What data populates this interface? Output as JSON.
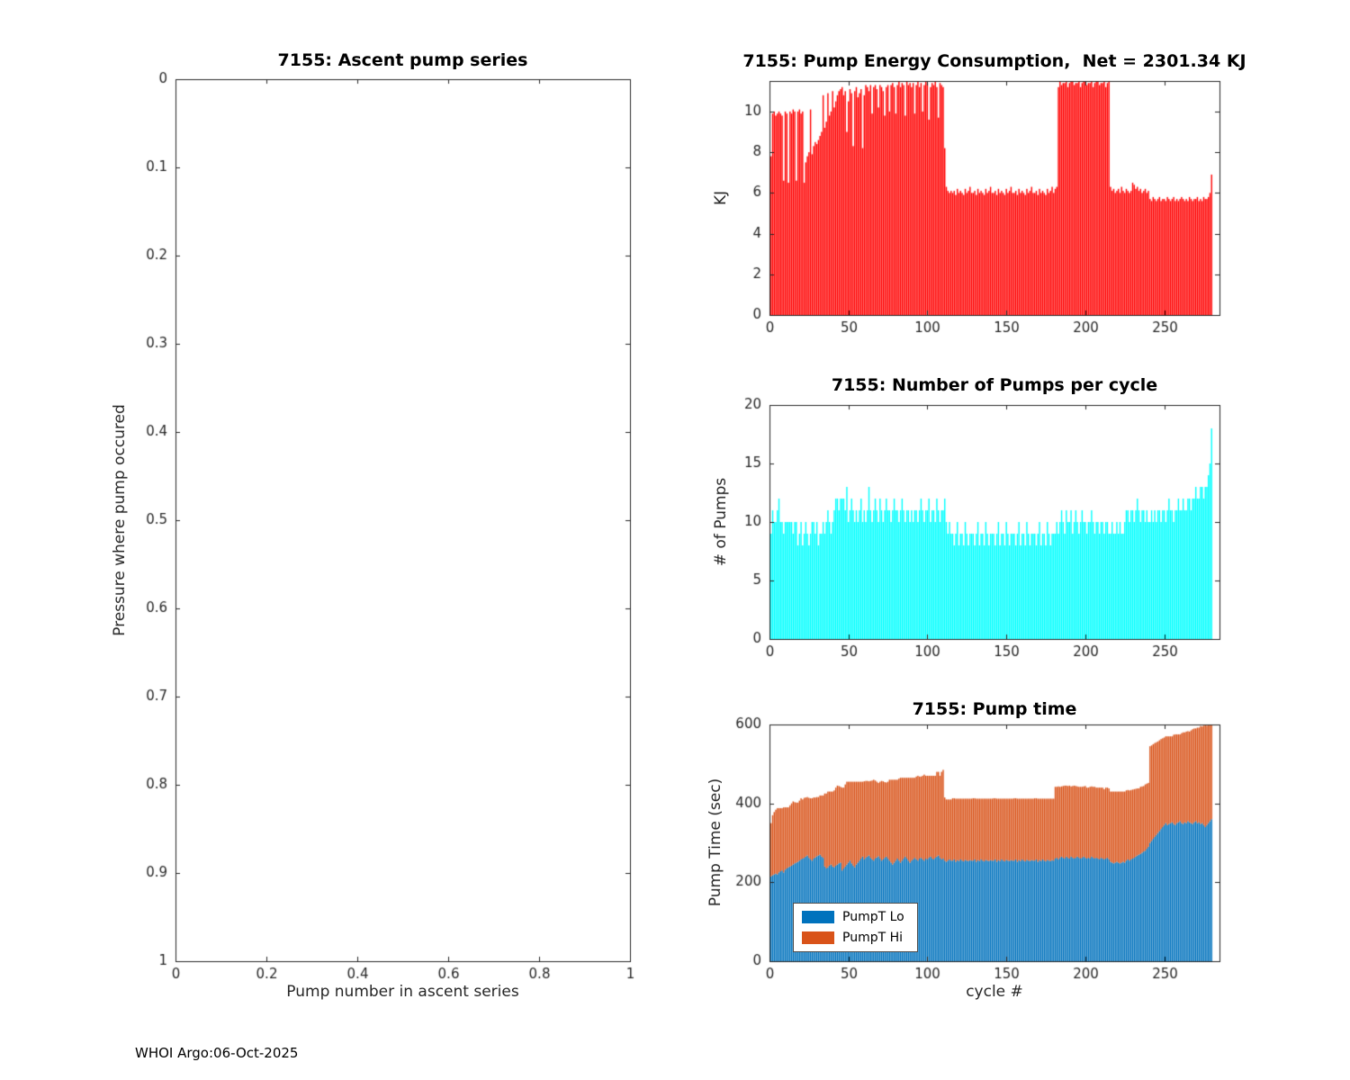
{
  "footer": {
    "text": "WHOI Argo:06-Oct-2025"
  },
  "colors": {
    "energy_bar": "#ff0000",
    "pumps_bar": "#00ffff",
    "pump_lo": "#0072bd",
    "pump_hi": "#d95319",
    "axis": "#262626",
    "title": "#000000"
  },
  "chart_data": [
    {
      "id": "ascent",
      "type": "bar",
      "title": "7155: Ascent pump series",
      "xlabel": "Pump number in ascent series",
      "ylabel": "Pressure where pump occured",
      "xlim": [
        0,
        1
      ],
      "ylim": [
        0,
        1
      ],
      "y_inverted": true,
      "grid": false,
      "xticks": [
        0,
        0.2,
        0.4,
        0.6,
        0.8,
        1
      ],
      "yticks": [
        0,
        0.1,
        0.2,
        0.3,
        0.4,
        0.5,
        0.6,
        0.7,
        0.8,
        0.9,
        1
      ],
      "color": "#0072bd",
      "values": []
    },
    {
      "id": "energy",
      "type": "bar",
      "title": "7155: Pump Energy Consumption,  Net = 2301.34 KJ",
      "net_kj": 2301.34,
      "xlabel": "",
      "ylabel": "KJ",
      "xlim": [
        0,
        285
      ],
      "ylim": [
        0,
        11.5
      ],
      "grid": false,
      "xticks": [
        0,
        50,
        100,
        150,
        200,
        250
      ],
      "yticks": [
        0,
        2,
        4,
        6,
        8,
        10
      ],
      "color": "#ff0000",
      "values": [
        7.8,
        9.9,
        10.0,
        9.8,
        9.9,
        10.0,
        9.9,
        9.8,
        6.6,
        10.0,
        9.9,
        6.5,
        10.0,
        9.9,
        10.1,
        10.0,
        6.6,
        10.0,
        10.1,
        9.9,
        10.0,
        6.5,
        7.5,
        7.8,
        8.0,
        10.1,
        7.9,
        8.3,
        8.5,
        8.4,
        8.6,
        8.8,
        9.0,
        10.8,
        9.2,
        9.5,
        10.9,
        9.8,
        10.0,
        11.0,
        10.2,
        10.5,
        10.8,
        11.0,
        11.1,
        11.2,
        10.8,
        11.0,
        9.0,
        10.5,
        11.1,
        10.9,
        8.3,
        11.0,
        11.2,
        10.7,
        10.9,
        11.1,
        8.2,
        10.8,
        11.3,
        11.2,
        11.0,
        11.3,
        9.9,
        11.2,
        11.3,
        11.1,
        10.2,
        11.3,
        11.2,
        11.0,
        9.8,
        11.2,
        11.3,
        10.0,
        11.3,
        11.4,
        11.2,
        9.9,
        11.3,
        11.5,
        11.2,
        11.4,
        11.3,
        9.8,
        11.5,
        11.3,
        11.4,
        11.2,
        11.4,
        9.9,
        11.3,
        11.5,
        11.2,
        11.4,
        10.0,
        11.3,
        11.5,
        11.4,
        9.6,
        11.2,
        11.4,
        11.3,
        11.5,
        11.2,
        9.7,
        11.4,
        11.3,
        11.2,
        8.2,
        6.3,
        6.1,
        6.0,
        6.1,
        6.0,
        6.1,
        5.9,
        6.2,
        6.0,
        6.1,
        6.0,
        5.9,
        6.2,
        6.0,
        6.1,
        6.3,
        6.0,
        6.0,
        6.1,
        5.9,
        6.2,
        6.0,
        6.1,
        6.0,
        5.9,
        6.2,
        6.0,
        6.1,
        6.3,
        6.0,
        6.0,
        6.1,
        5.9,
        6.2,
        6.0,
        6.1,
        6.0,
        5.9,
        6.2,
        6.0,
        6.1,
        6.3,
        6.0,
        6.0,
        6.1,
        5.9,
        6.2,
        6.0,
        6.1,
        6.0,
        5.9,
        6.2,
        6.0,
        6.1,
        6.3,
        6.0,
        6.0,
        6.1,
        5.9,
        6.2,
        6.0,
        6.1,
        6.0,
        5.9,
        6.2,
        6.0,
        6.1,
        6.3,
        6.0,
        6.2,
        6.3,
        11.2,
        11.5,
        11.3,
        11.4,
        11.4,
        11.5,
        11.2,
        11.4,
        11.5,
        11.5,
        11.3,
        11.4,
        11.4,
        11.5,
        11.2,
        11.4,
        11.5,
        11.5,
        11.3,
        11.4,
        11.4,
        11.5,
        11.2,
        11.4,
        11.5,
        11.5,
        11.3,
        11.4,
        11.4,
        11.5,
        11.2,
        11.4,
        11.5,
        6.3,
        6.1,
        6.2,
        6.0,
        6.1,
        6.2,
        6.0,
        6.3,
        6.1,
        6.0,
        6.2,
        6.1,
        6.0,
        6.1,
        6.5,
        6.4,
        6.2,
        6.3,
        6.1,
        6.2,
        6.0,
        6.1,
        6.2,
        6.0,
        6.1,
        5.7,
        5.6,
        5.8,
        5.7,
        5.6,
        5.7,
        5.8,
        5.6,
        5.7,
        5.7,
        5.6,
        5.8,
        5.7,
        5.6,
        5.7,
        5.8,
        5.6,
        5.7,
        5.6,
        5.7,
        5.8,
        5.7,
        5.6,
        5.7,
        5.6,
        5.8,
        5.7,
        5.6,
        5.7,
        5.7,
        5.8,
        5.6,
        5.7,
        5.6,
        5.8,
        5.7,
        5.7,
        5.8,
        6.0,
        6.9
      ]
    },
    {
      "id": "pumps",
      "type": "bar",
      "title": "7155: Number of Pumps per cycle",
      "xlabel": "",
      "ylabel": "# of Pumps",
      "xlim": [
        0,
        285
      ],
      "ylim": [
        0,
        20
      ],
      "grid": false,
      "xticks": [
        0,
        50,
        100,
        150,
        200,
        250
      ],
      "yticks": [
        0,
        5,
        10,
        15,
        20
      ],
      "color": "#00ffff",
      "values": [
        9,
        11,
        10,
        10,
        11,
        12,
        10,
        10,
        9,
        10,
        10,
        10,
        10,
        10,
        9,
        10,
        10,
        8,
        9,
        10,
        8,
        9,
        10,
        9,
        8,
        9,
        10,
        10,
        9,
        10,
        8,
        9,
        9,
        10,
        9,
        10,
        11,
        10,
        9,
        10,
        11,
        12,
        12,
        11,
        12,
        12,
        12,
        11,
        13,
        10,
        11,
        12,
        11,
        10,
        11,
        10,
        11,
        12,
        10,
        11,
        10,
        11,
        13,
        11,
        10,
        11,
        12,
        11,
        10,
        12,
        11,
        10,
        11,
        12,
        11,
        11,
        10,
        11,
        12,
        11,
        11,
        10,
        11,
        12,
        11,
        10,
        11,
        11,
        10,
        11,
        10,
        11,
        11,
        10,
        11,
        12,
        11,
        10,
        11,
        11,
        12,
        10,
        11,
        11,
        10,
        12,
        11,
        10,
        11,
        11,
        12,
        10,
        9,
        10,
        9,
        9,
        8,
        9,
        10,
        8,
        9,
        9,
        8,
        10,
        9,
        8,
        9,
        9,
        9,
        8,
        9,
        10,
        8,
        9,
        9,
        8,
        10,
        9,
        8,
        9,
        9,
        9,
        8,
        9,
        10,
        8,
        9,
        9,
        8,
        10,
        9,
        8,
        9,
        9,
        9,
        8,
        9,
        10,
        8,
        9,
        9,
        8,
        10,
        9,
        8,
        9,
        9,
        9,
        8,
        9,
        10,
        8,
        9,
        9,
        8,
        10,
        9,
        8,
        9,
        9,
        9,
        10,
        9,
        10,
        11,
        10,
        9,
        11,
        10,
        10,
        11,
        9,
        10,
        11,
        10,
        9,
        10,
        11,
        10,
        10,
        9,
        10,
        10,
        11,
        10,
        9,
        10,
        10,
        9,
        10,
        10,
        9,
        10,
        10,
        9,
        9,
        10,
        9,
        9,
        10,
        9,
        10,
        9,
        9,
        10,
        11,
        11,
        10,
        11,
        11,
        10,
        11,
        12,
        11,
        10,
        11,
        11,
        10,
        11,
        10,
        10,
        11,
        10,
        11,
        10,
        11,
        11,
        10,
        11,
        11,
        10,
        11,
        12,
        11,
        11,
        10,
        11,
        11,
        12,
        11,
        11,
        12,
        11,
        11,
        12,
        12,
        11,
        12,
        12,
        13,
        12,
        12,
        13,
        13,
        12,
        13,
        13,
        14,
        15,
        18
      ]
    },
    {
      "id": "pumptime",
      "type": "stacked-bar",
      "title": "7155: Pump time",
      "xlabel": "cycle #",
      "ylabel": "Pump Time (sec)",
      "xlim": [
        0,
        285
      ],
      "ylim": [
        0,
        600
      ],
      "grid": false,
      "xticks": [
        0,
        50,
        100,
        150,
        200,
        250
      ],
      "yticks": [
        0,
        200,
        400,
        600
      ],
      "legend": [
        {
          "label": "PumpT Lo",
          "color": "#0072bd"
        },
        {
          "label": "PumpT Hi",
          "color": "#d95319"
        }
      ],
      "series": [
        {
          "name": "PumpT Lo",
          "color": "#0072bd",
          "values": [
            215,
            218,
            220,
            222,
            220,
            225,
            228,
            230,
            225,
            232,
            235,
            238,
            240,
            242,
            245,
            248,
            250,
            252,
            255,
            258,
            260,
            262,
            265,
            268,
            262,
            258,
            255,
            260,
            263,
            266,
            268,
            270,
            265,
            262,
            240,
            235,
            238,
            242,
            245,
            240,
            238,
            242,
            245,
            248,
            250,
            230,
            235,
            240,
            245,
            250,
            255,
            248,
            242,
            238,
            245,
            250,
            255,
            260,
            265,
            258,
            262,
            265,
            268,
            262,
            258,
            255,
            260,
            263,
            266,
            260,
            255,
            258,
            262,
            265,
            260,
            255,
            250,
            245,
            250,
            255,
            260,
            255,
            250,
            255,
            260,
            265,
            260,
            255,
            250,
            255,
            258,
            262,
            258,
            255,
            260,
            262,
            258,
            255,
            260,
            258,
            262,
            265,
            260,
            258,
            262,
            265,
            268,
            262,
            258,
            260,
            255,
            252,
            255,
            258,
            255,
            255,
            258,
            252,
            256,
            254,
            258,
            255,
            253,
            257,
            255,
            254,
            256,
            255,
            255,
            258,
            252,
            256,
            254,
            258,
            255,
            253,
            257,
            255,
            254,
            256,
            255,
            255,
            258,
            252,
            256,
            254,
            258,
            255,
            253,
            257,
            255,
            254,
            256,
            255,
            255,
            258,
            252,
            256,
            254,
            258,
            255,
            253,
            257,
            255,
            254,
            256,
            255,
            255,
            258,
            252,
            256,
            254,
            258,
            255,
            253,
            257,
            255,
            254,
            256,
            255,
            260,
            262,
            258,
            262,
            265,
            262,
            260,
            265,
            262,
            260,
            265,
            262,
            260,
            262,
            265,
            262,
            260,
            262,
            265,
            262,
            260,
            262,
            260,
            265,
            262,
            260,
            262,
            260,
            258,
            262,
            260,
            258,
            260,
            262,
            258,
            252,
            250,
            248,
            250,
            252,
            250,
            248,
            250,
            252,
            250,
            255,
            258,
            255,
            258,
            260,
            262,
            265,
            268,
            270,
            272,
            275,
            278,
            280,
            285,
            290,
            300,
            305,
            310,
            315,
            320,
            325,
            330,
            335,
            340,
            345,
            350,
            345,
            348,
            350,
            352,
            348,
            345,
            350,
            352,
            355,
            350,
            348,
            352,
            350,
            355,
            352,
            350,
            348,
            352,
            355,
            350,
            352,
            348,
            350,
            345,
            340,
            345,
            350,
            355,
            360
          ]
        },
        {
          "name": "PumpT Hi",
          "color": "#d95319",
          "values": [
            135,
            152,
            158,
            162,
            168,
            163,
            160,
            158,
            165,
            158,
            155,
            152,
            155,
            158,
            160,
            155,
            152,
            150,
            152,
            155,
            150,
            152,
            150,
            148,
            152,
            155,
            158,
            155,
            152,
            150,
            148,
            150,
            155,
            158,
            185,
            190,
            192,
            188,
            185,
            190,
            195,
            198,
            200,
            196,
            192,
            210,
            205,
            208,
            210,
            205,
            200,
            207,
            213,
            217,
            210,
            205,
            200,
            195,
            190,
            198,
            195,
            192,
            188,
            195,
            200,
            205,
            198,
            192,
            186,
            195,
            202,
            198,
            192,
            188,
            195,
            205,
            210,
            215,
            210,
            205,
            200,
            208,
            215,
            210,
            205,
            200,
            205,
            210,
            215,
            210,
            207,
            203,
            210,
            215,
            208,
            206,
            212,
            218,
            210,
            212,
            208,
            205,
            210,
            212,
            208,
            215,
            212,
            208,
            222,
            225,
            160,
            158,
            155,
            152,
            155,
            158,
            155,
            160,
            156,
            158,
            154,
            157,
            159,
            155,
            157,
            158,
            156,
            157,
            158,
            155,
            160,
            156,
            158,
            154,
            157,
            159,
            155,
            157,
            158,
            156,
            157,
            158,
            155,
            160,
            156,
            158,
            154,
            157,
            159,
            155,
            157,
            158,
            156,
            157,
            158,
            155,
            160,
            156,
            158,
            154,
            157,
            159,
            155,
            157,
            158,
            156,
            157,
            158,
            155,
            160,
            156,
            158,
            154,
            157,
            159,
            155,
            157,
            158,
            156,
            157,
            182,
            180,
            185,
            180,
            178,
            182,
            185,
            180,
            182,
            185,
            178,
            182,
            185,
            182,
            178,
            180,
            182,
            180,
            178,
            182,
            180,
            178,
            182,
            178,
            180,
            182,
            178,
            180,
            182,
            178,
            180,
            178,
            180,
            178,
            180,
            178,
            180,
            182,
            180,
            178,
            180,
            182,
            180,
            178,
            180,
            178,
            176,
            178,
            176,
            175,
            174,
            172,
            170,
            168,
            170,
            168,
            166,
            168,
            165,
            162,
            245,
            242,
            240,
            238,
            235,
            232,
            230,
            228,
            225,
            222,
            220,
            225,
            222,
            220,
            218,
            226,
            230,
            225,
            223,
            220,
            228,
            232,
            228,
            232,
            228,
            230,
            235,
            240,
            238,
            235,
            242,
            240,
            248,
            245,
            252,
            258,
            252,
            248,
            243,
            240
          ]
        }
      ]
    }
  ]
}
